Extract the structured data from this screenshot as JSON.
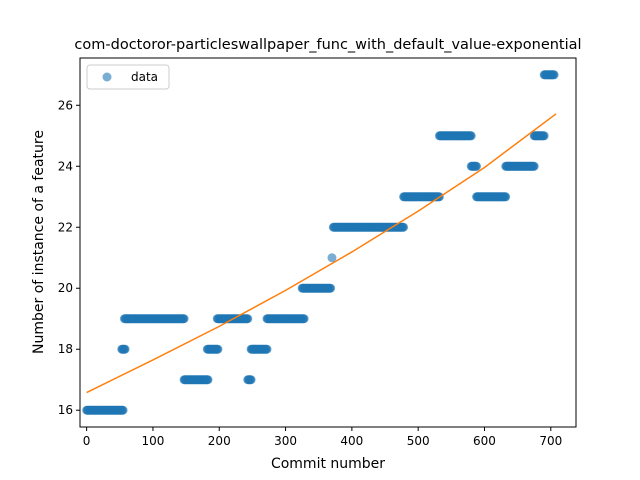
{
  "chart_data": {
    "type": "scatter",
    "title": "com-doctoror-particleswallpaper_func_with_default_value-exponential",
    "xlabel": "Commit number",
    "ylabel": "Number of instance of a feature",
    "xlim": [
      -10,
      738
    ],
    "ylim": [
      15.45,
      27.55
    ],
    "xticks": [
      0,
      100,
      200,
      300,
      400,
      500,
      600,
      700
    ],
    "yticks": [
      16,
      18,
      20,
      22,
      24,
      26
    ],
    "grid": false,
    "legend": {
      "placement": "top-left",
      "entries": [
        "data"
      ]
    },
    "colors": {
      "data": "#1f77b4",
      "fit": "#ff7f0e"
    },
    "series": [
      {
        "name": "data",
        "kind": "scatter",
        "segments": [
          {
            "x_start": 0,
            "x_end": 55,
            "y": 16
          },
          {
            "x_start": 53,
            "x_end": 58,
            "y": 18
          },
          {
            "x_start": 57,
            "x_end": 147,
            "y": 19
          },
          {
            "x_start": 147,
            "x_end": 183,
            "y": 17
          },
          {
            "x_start": 182,
            "x_end": 198,
            "y": 18
          },
          {
            "x_start": 197,
            "x_end": 243,
            "y": 19
          },
          {
            "x_start": 243,
            "x_end": 248,
            "y": 17
          },
          {
            "x_start": 248,
            "x_end": 272,
            "y": 18
          },
          {
            "x_start": 272,
            "x_end": 328,
            "y": 19
          },
          {
            "x_start": 325,
            "x_end": 368,
            "y": 20
          },
          {
            "x_start": 370,
            "x_end": 370,
            "y": 21
          },
          {
            "x_start": 372,
            "x_end": 478,
            "y": 22
          },
          {
            "x_start": 478,
            "x_end": 532,
            "y": 23
          },
          {
            "x_start": 532,
            "x_end": 580,
            "y": 25
          },
          {
            "x_start": 580,
            "x_end": 588,
            "y": 24
          },
          {
            "x_start": 588,
            "x_end": 632,
            "y": 23
          },
          {
            "x_start": 632,
            "x_end": 675,
            "y": 24
          },
          {
            "x_start": 675,
            "x_end": 690,
            "y": 25
          },
          {
            "x_start": 690,
            "x_end": 705,
            "y": 27
          }
        ]
      },
      {
        "name": "fit",
        "kind": "line",
        "x": [
          0,
          100,
          200,
          300,
          400,
          500,
          600,
          708
        ],
        "y": [
          16.58,
          17.65,
          18.75,
          19.93,
          21.19,
          22.53,
          23.96,
          25.72
        ]
      }
    ]
  }
}
